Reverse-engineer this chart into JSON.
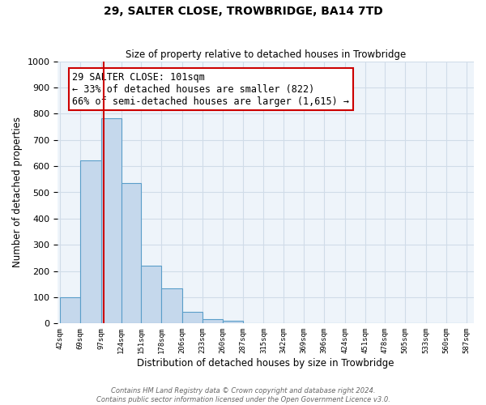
{
  "title": "29, SALTER CLOSE, TROWBRIDGE, BA14 7TD",
  "subtitle": "Size of property relative to detached houses in Trowbridge",
  "xlabel": "Distribution of detached houses by size in Trowbridge",
  "ylabel": "Number of detached properties",
  "bar_edges": [
    42,
    69,
    97,
    124,
    151,
    178,
    206,
    233,
    260,
    287,
    315,
    342,
    369,
    396,
    424,
    451,
    478,
    505,
    533,
    560,
    587
  ],
  "bar_heights": [
    100,
    622,
    783,
    537,
    220,
    133,
    44,
    15,
    10,
    0,
    0,
    0,
    0,
    0,
    0,
    0,
    0,
    0,
    0,
    0
  ],
  "bar_color": "#c5d8ec",
  "bar_edge_color": "#5a9ec9",
  "property_line_x": 101,
  "property_line_color": "#cc0000",
  "annotation_line1": "29 SALTER CLOSE: 101sqm",
  "annotation_line2": "← 33% of detached houses are smaller (822)",
  "annotation_line3": "66% of semi-detached houses are larger (1,615) →",
  "annotation_box_color": "#cc0000",
  "ylim": [
    0,
    1000
  ],
  "yticks": [
    0,
    100,
    200,
    300,
    400,
    500,
    600,
    700,
    800,
    900,
    1000
  ],
  "grid_color": "#d0dce8",
  "background_color": "#eef4fa",
  "footer_line1": "Contains HM Land Registry data © Crown copyright and database right 2024.",
  "footer_line2": "Contains public sector information licensed under the Open Government Licence v3.0."
}
